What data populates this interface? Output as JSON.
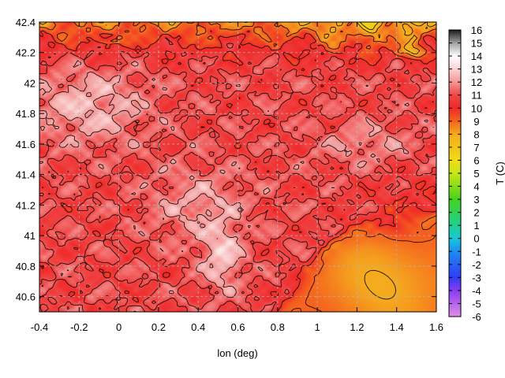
{
  "chart_data": {
    "type": "heatmap",
    "title": "",
    "xlabel": "lon (deg)",
    "ylabel": "",
    "colorbar_label": "T (C)",
    "xlim": [
      -0.4,
      1.6
    ],
    "ylim": [
      40.5,
      42.4
    ],
    "x_ticks": [
      -0.4,
      -0.2,
      0,
      0.2,
      0.4,
      0.6,
      0.8,
      1,
      1.2,
      1.4,
      1.6
    ],
    "y_ticks": [
      40.6,
      40.8,
      41,
      41.2,
      41.4,
      41.6,
      41.8,
      42,
      42.2,
      42.4
    ],
    "colorbar_range": [
      -6,
      16
    ],
    "colorbar_ticks": [
      16,
      15,
      14,
      13,
      12,
      11,
      10,
      9,
      8,
      7,
      6,
      5,
      4,
      3,
      2,
      1,
      0,
      -1,
      -2,
      -3,
      -4,
      -5,
      -6
    ],
    "grid": true,
    "colormap": [
      {
        "v": -6,
        "c": "#e08ee8"
      },
      {
        "v": -4,
        "c": "#8a3cf0"
      },
      {
        "v": -3,
        "c": "#2f3cf5"
      },
      {
        "v": -1,
        "c": "#1e8cf0"
      },
      {
        "v": 0,
        "c": "#18c8d8"
      },
      {
        "v": 1,
        "c": "#1ed090"
      },
      {
        "v": 3,
        "c": "#46d21e"
      },
      {
        "v": 5,
        "c": "#c8e614"
      },
      {
        "v": 6,
        "c": "#f0dc14"
      },
      {
        "v": 8,
        "c": "#f5aa1e"
      },
      {
        "v": 9,
        "c": "#f5641e"
      },
      {
        "v": 10,
        "c": "#f02828"
      },
      {
        "v": 11,
        "c": "#f04646"
      },
      {
        "v": 12,
        "c": "#f59696"
      },
      {
        "v": 13,
        "c": "#fad2d2"
      },
      {
        "v": 14,
        "c": "#ffffff"
      },
      {
        "v": 15,
        "c": "#a0a0a0"
      },
      {
        "v": 16,
        "c": "#1a1a1a"
      }
    ]
  }
}
